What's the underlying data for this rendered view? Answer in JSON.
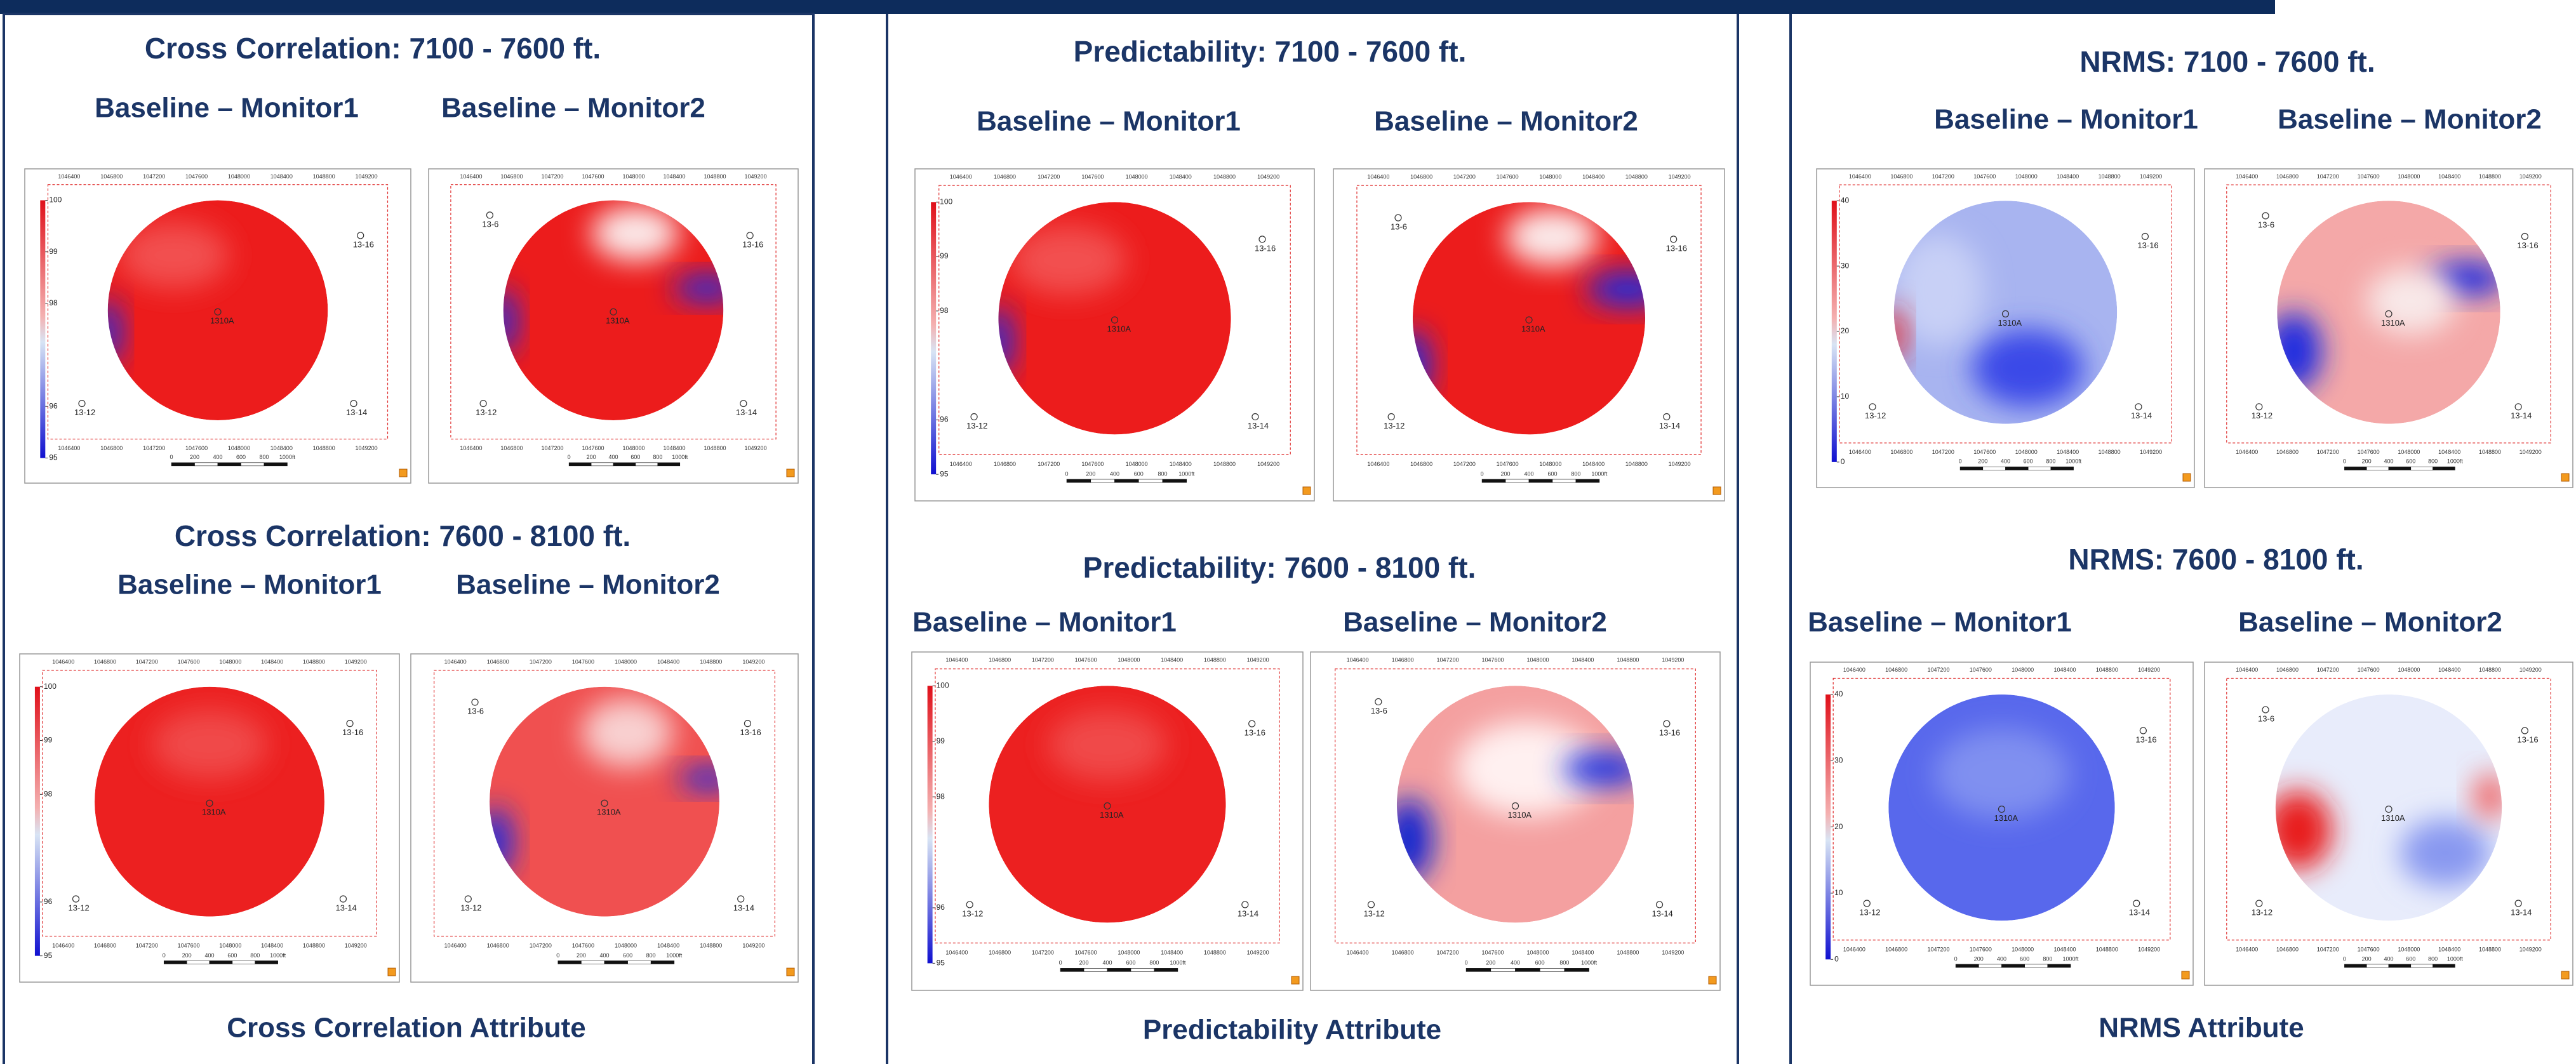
{
  "panels": [
    {
      "sections": [
        {
          "title": "Cross Correlation: 7100 - 7600 ft.",
          "maps": [
            {
              "subtitle": "Baseline – Monitor1"
            },
            {
              "subtitle": "Baseline – Monitor2"
            }
          ]
        },
        {
          "title": "Cross Correlation: 7600 - 8100 ft.",
          "maps": [
            {
              "subtitle": "Baseline – Monitor1"
            },
            {
              "subtitle": "Baseline – Monitor2"
            }
          ]
        }
      ],
      "caption": "Cross Correlation Attribute",
      "colorbar_lim": [
        95,
        100
      ],
      "colorbar_ticks": [
        100,
        99,
        98,
        96,
        95
      ]
    },
    {
      "sections": [
        {
          "title": "Predictability: 7100 - 7600 ft.",
          "maps": [
            {
              "subtitle": "Baseline – Monitor1"
            },
            {
              "subtitle": "Baseline – Monitor2"
            }
          ]
        },
        {
          "title": "Predictability: 7600 - 8100 ft.",
          "maps": [
            {
              "subtitle": "Baseline – Monitor1"
            },
            {
              "subtitle": "Baseline – Monitor2"
            }
          ]
        }
      ],
      "caption": "Predictability Attribute",
      "colorbar_lim": [
        95,
        100
      ],
      "colorbar_ticks": [
        100,
        99,
        98,
        96,
        95
      ]
    },
    {
      "sections": [
        {
          "title": "NRMS: 7100 - 7600 ft.",
          "maps": [
            {
              "subtitle": "Baseline – Monitor1"
            },
            {
              "subtitle": "Baseline – Monitor2"
            }
          ]
        },
        {
          "title": "NRMS: 7600 - 8100 ft.",
          "maps": [
            {
              "subtitle": "Baseline – Monitor1"
            },
            {
              "subtitle": "Baseline – Monitor2"
            }
          ]
        }
      ],
      "caption": "NRMS Attribute",
      "colorbar_lim": [
        0,
        40
      ],
      "colorbar_ticks": [
        40,
        30,
        20,
        10,
        0
      ]
    }
  ],
  "wells": [
    "13-6",
    "13-16",
    "1310A",
    "13-12",
    "13-14"
  ],
  "x_coords": [
    1046400,
    1046800,
    1047200,
    1047600,
    1048000,
    1048400,
    1048800,
    1049200
  ],
  "scale_labels": [
    "0",
    "200",
    "400",
    "600",
    "800",
    "1000ft"
  ]
}
